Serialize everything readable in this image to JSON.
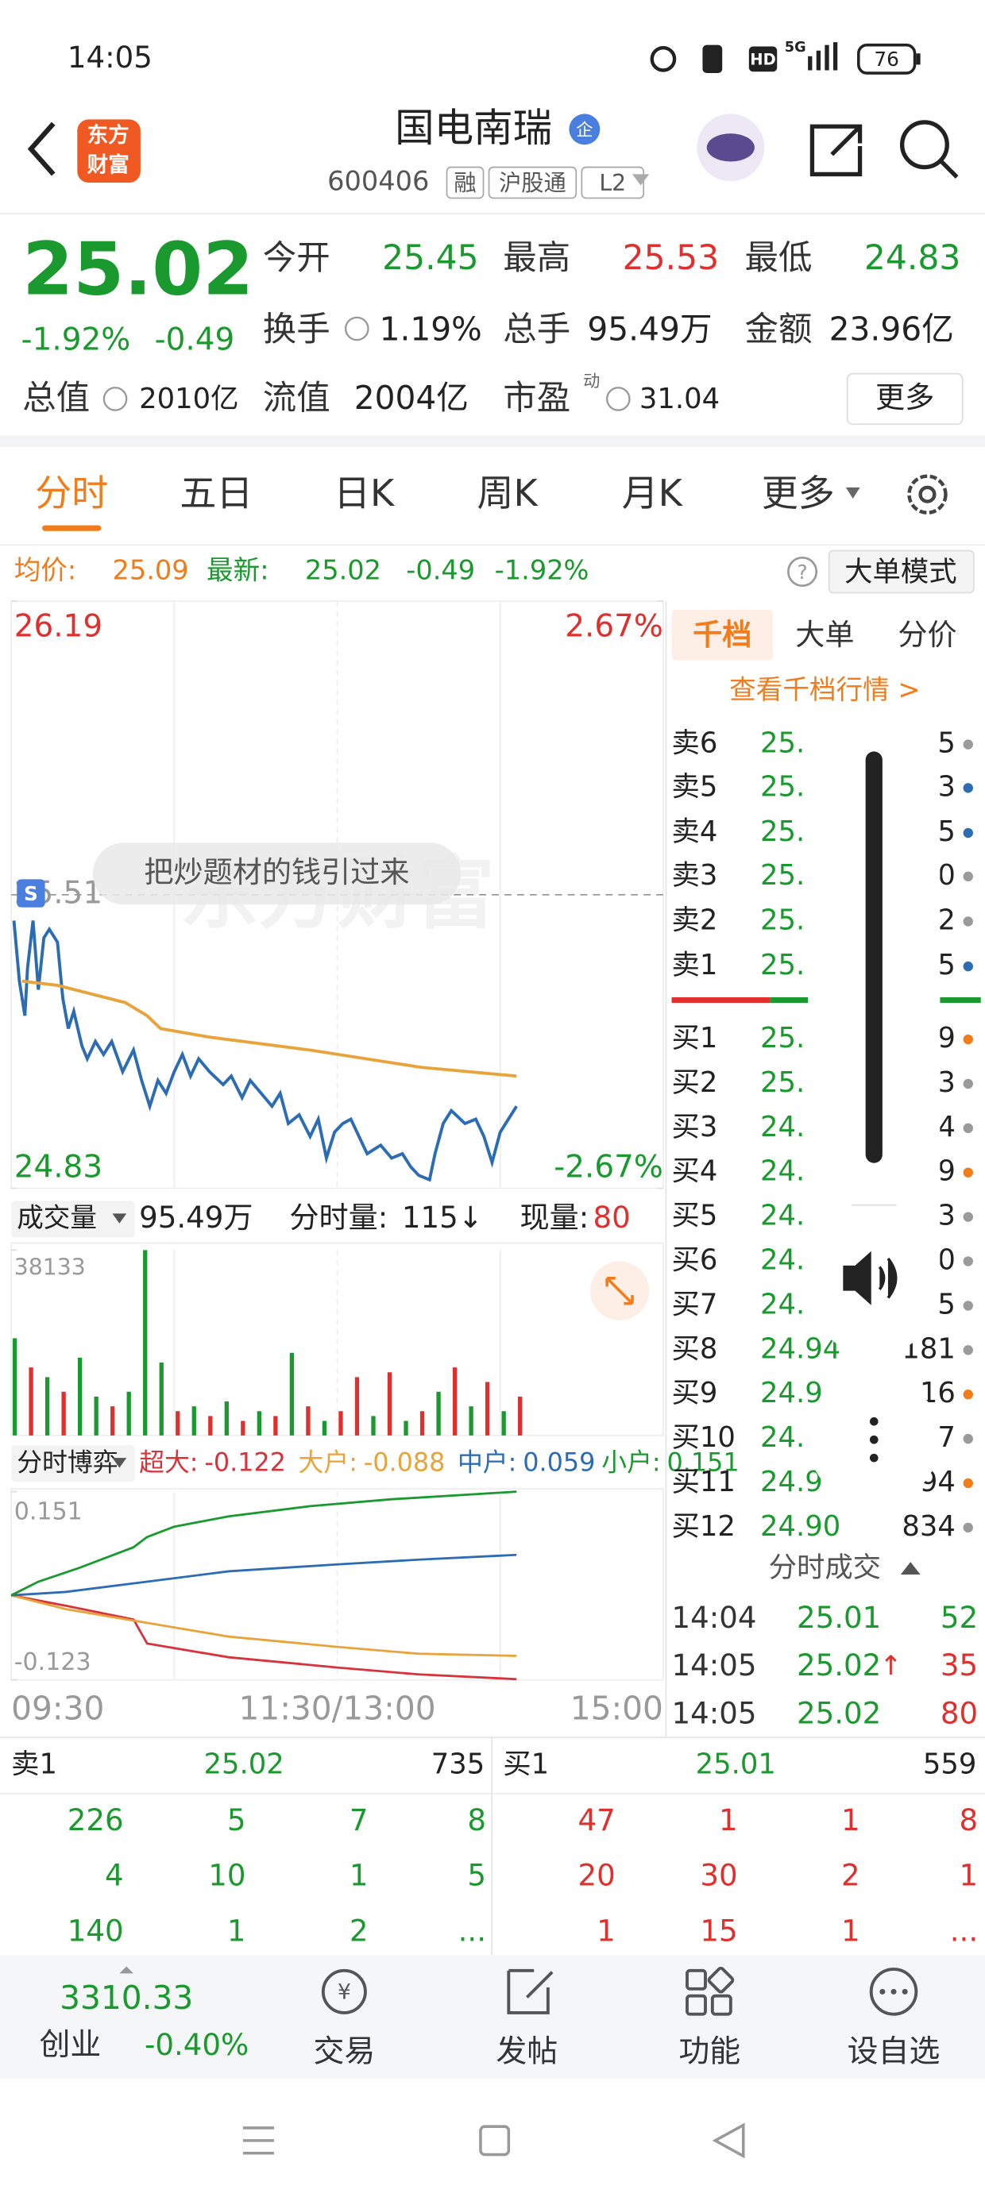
{
  "status_bar": {
    "time": "14:05",
    "hd": "HD",
    "network": "5G",
    "battery": "76"
  },
  "header": {
    "logo": [
      "东方",
      "财富"
    ],
    "title": "国电南瑞",
    "badge": "企",
    "code": "600406",
    "tags": [
      "融",
      "沪股通",
      "L2"
    ]
  },
  "quote": {
    "price": "25.02",
    "change_pct": "-1.92%",
    "change": "-0.49",
    "fields": [
      {
        "label": "今开",
        "value": "25.45",
        "color": "#1a9a2e"
      },
      {
        "label": "最高",
        "value": "25.53",
        "color": "#e0302e"
      },
      {
        "label": "最低",
        "value": "24.83",
        "color": "#1a9a2e"
      },
      {
        "label": "换手",
        "value": "1.19%",
        "color": "#222222"
      },
      {
        "label": "总手",
        "value": "95.49万",
        "color": "#222222"
      },
      {
        "label": "金额",
        "value": "23.96亿",
        "color": "#222222"
      },
      {
        "label": "总值",
        "value": "2010亿",
        "color": "#222222"
      },
      {
        "label": "流值",
        "value": "2004亿",
        "color": "#222222"
      },
      {
        "label": "市盈",
        "value": "31.04",
        "color": "#222222"
      }
    ],
    "pe_note": "动",
    "more_button": "更多"
  },
  "tabs": [
    "分时",
    "五日",
    "日K",
    "周K",
    "月K",
    "更多"
  ],
  "info_bar": {
    "avg_label": "均价:",
    "avg": "25.09",
    "last_label": "最新:",
    "last": "25.02",
    "change": "-0.49",
    "change_pct": "-1.92%",
    "help": "?",
    "mode_button": "大单模式"
  },
  "overlay": {
    "tooltip": "把炒题材的钱引过来",
    "watermark": "东方财富",
    "marker": "S"
  },
  "chart_data": [
    {
      "type": "line",
      "ylim": [
        24.83,
        26.19
      ],
      "yticks": [
        24.83,
        25.51,
        26.19
      ],
      "y2lim": [
        -2.67,
        2.67
      ],
      "y2ticks": [
        {
          "value": -2.67,
          "label": "-2.67%"
        },
        {
          "value": 2.67,
          "label": "2.67%"
        }
      ],
      "xlim": [
        0,
        240
      ],
      "xticks": [
        {
          "value": 60,
          "label": null
        },
        {
          "value": 120,
          "label": null
        },
        {
          "value": 180,
          "label": null
        }
      ],
      "series": [
        {
          "color": "#2b6cb4",
          "x": [
            1,
            3,
            5,
            6,
            8,
            10,
            12,
            14,
            17,
            19,
            21,
            23,
            26,
            28,
            31,
            34,
            37,
            41,
            45,
            48,
            51,
            54,
            57,
            60,
            63,
            66,
            69,
            73,
            78,
            81,
            85,
            88,
            92,
            96,
            99,
            102,
            106,
            110,
            113,
            116,
            119,
            122,
            125,
            128,
            131,
            136,
            140,
            144,
            147,
            150,
            154,
            156,
            159,
            162,
            167,
            171,
            174,
            177,
            180,
            183,
            186
          ],
          "values": [
            25.45,
            25.31,
            25.23,
            25.34,
            25.45,
            25.29,
            25.41,
            25.43,
            25.4,
            25.27,
            25.2,
            25.24,
            25.16,
            25.13,
            25.17,
            25.14,
            25.17,
            25.1,
            25.15,
            25.08,
            25.02,
            25.08,
            25.05,
            25.1,
            25.14,
            25.09,
            25.13,
            25.1,
            25.07,
            25.09,
            25.04,
            25.08,
            25.05,
            25.02,
            25.05,
            24.98,
            25.0,
            24.95,
            24.99,
            24.9,
            24.96,
            24.98,
            24.99,
            24.95,
            24.91,
            24.93,
            24.9,
            24.91,
            24.88,
            24.86,
            24.85,
            24.91,
            24.98,
            25.01,
            24.98,
            24.99,
            24.95,
            24.89,
            24.96,
            24.99,
            25.02
          ]
        },
        {
          "color": "#e8a33a",
          "x": [
            4,
            17,
            42,
            50,
            55,
            73,
            110,
            151,
            186
          ],
          "values": [
            25.31,
            25.3,
            25.26,
            25.23,
            25.2,
            25.18,
            25.15,
            25.11,
            25.09
          ]
        }
      ]
    },
    {
      "type": "bar",
      "title": "成交量",
      "total": "95.49万",
      "interval_label": "分时量:",
      "interval_value": "115↓",
      "current_label": "现量:",
      "current_value": "80",
      "ylim": [
        0,
        38133
      ],
      "yticks": [
        38133
      ],
      "xlim": [
        0,
        240
      ],
      "xticks": [
        {
          "value": 60,
          "label": null
        },
        {
          "value": 120,
          "label": null
        },
        {
          "value": 180,
          "label": null
        }
      ],
      "x": [
        0,
        6,
        12,
        18,
        24,
        30,
        36,
        42,
        48,
        54,
        60,
        66,
        72,
        78,
        84,
        90,
        96,
        102,
        108,
        114,
        120,
        126,
        132,
        138,
        144,
        150,
        156,
        162,
        168,
        174,
        180,
        186
      ],
      "values": [
        20000,
        14000,
        12000,
        9000,
        16000,
        8000,
        6000,
        9000,
        38133,
        15000,
        5000,
        6000,
        4000,
        7000,
        3000,
        5000,
        4000,
        17000,
        6000,
        3000,
        5000,
        12000,
        4000,
        13000,
        3000,
        5000,
        9000,
        14000,
        6000,
        11000,
        5000,
        8000
      ],
      "colors": [
        "#1a9a2e",
        "#e0302e",
        "#1a9a2e",
        "#e0302e",
        "#1a9a2e",
        "#1a9a2e",
        "#e0302e",
        "#1a9a2e",
        "#1a9a2e",
        "#1a9a2e",
        "#e0302e",
        "#1a9a2e",
        "#e0302e",
        "#1a9a2e",
        "#e0302e",
        "#1a9a2e",
        "#e0302e",
        "#1a9a2e",
        "#e0302e",
        "#1a9a2e",
        "#e0302e",
        "#e0302e",
        "#1a9a2e",
        "#e0302e",
        "#1a9a2e",
        "#e0302e",
        "#1a9a2e",
        "#e0302e",
        "#1a9a2e",
        "#e0302e",
        "#1a9a2e",
        "#e0302e"
      ]
    },
    {
      "type": "line",
      "title": "分时博弈",
      "ylim": [
        -0.123,
        0.151
      ],
      "yticks": [
        -0.123,
        0.151
      ],
      "xlim": [
        0,
        240
      ],
      "xticks": [
        {
          "value": 0,
          "label": "09:30"
        },
        {
          "value": 60,
          "label": null
        },
        {
          "value": 120,
          "label": "11:30/13:00"
        },
        {
          "value": 180,
          "label": null
        },
        {
          "value": 240,
          "label": "15:00"
        }
      ],
      "series": [
        {
          "name": "超大:",
          "latest": -0.122,
          "color": "#d8323a",
          "x": [
            0,
            20,
            45,
            50,
            80,
            120,
            150,
            186
          ],
          "values": [
            0,
            -0.015,
            -0.035,
            -0.07,
            -0.09,
            -0.105,
            -0.115,
            -0.122
          ]
        },
        {
          "name": "大户:",
          "latest": -0.088,
          "color": "#e8a33a",
          "x": [
            0,
            20,
            50,
            80,
            120,
            150,
            186
          ],
          "values": [
            0,
            -0.02,
            -0.04,
            -0.06,
            -0.075,
            -0.085,
            -0.088
          ]
        },
        {
          "name": "中户:",
          "latest": 0.059,
          "color": "#2b6cb4",
          "x": [
            0,
            20,
            50,
            80,
            120,
            150,
            186
          ],
          "values": [
            0,
            0.005,
            0.02,
            0.035,
            0.045,
            0.052,
            0.059
          ]
        },
        {
          "name": "小户:",
          "latest": 0.151,
          "color": "#1a9a2e",
          "x": [
            0,
            10,
            25,
            45,
            50,
            60,
            80,
            110,
            140,
            186
          ],
          "values": [
            0,
            0.02,
            0.04,
            0.07,
            0.085,
            0.1,
            0.115,
            0.13,
            0.14,
            0.151
          ]
        }
      ]
    }
  ],
  "depth": {
    "tabs": [
      "千档",
      "大单",
      "分价"
    ],
    "link": "查看千档行情 >",
    "sell": [
      {
        "label": "卖6",
        "price": "25.",
        "volume": "5",
        "dot": "#9a9a9a"
      },
      {
        "label": "卖5",
        "price": "25.",
        "volume": "3",
        "dot": "#2b6cb4"
      },
      {
        "label": "卖4",
        "price": "25.",
        "volume": "5",
        "dot": "#2b6cb4"
      },
      {
        "label": "卖3",
        "price": "25.",
        "volume": "0",
        "dot": "#9a9a9a"
      },
      {
        "label": "卖2",
        "price": "25.",
        "volume": "2",
        "dot": "#9a9a9a"
      },
      {
        "label": "卖1",
        "price": "25.",
        "volume": "5",
        "dot": "#2b6cb4"
      }
    ],
    "buy": [
      {
        "label": "买1",
        "price": "25.",
        "volume": "9",
        "dot": "#f07c1c"
      },
      {
        "label": "买2",
        "price": "25.",
        "volume": "3",
        "dot": "#9a9a9a"
      },
      {
        "label": "买3",
        "price": "24.",
        "volume": "4",
        "dot": "#9a9a9a"
      },
      {
        "label": "买4",
        "price": "24.",
        "volume": "9",
        "dot": "#f07c1c"
      },
      {
        "label": "买5",
        "price": "24.",
        "volume": "3",
        "dot": "#9a9a9a"
      },
      {
        "label": "买6",
        "price": "24.",
        "volume": "0",
        "dot": "#9a9a9a"
      },
      {
        "label": "买7",
        "price": "24.",
        "volume": "5",
        "dot": "#9a9a9a"
      },
      {
        "label": "买8",
        "price": "24.94",
        "volume": "181",
        "dot": "#9a9a9a"
      },
      {
        "label": "买9",
        "price": "24.9",
        "volume": "16",
        "dot": "#f07c1c"
      },
      {
        "label": "买10",
        "price": "24.",
        "volume": "7",
        "dot": "#9a9a9a"
      },
      {
        "label": "买11",
        "price": "24.9",
        "volume": "94",
        "dot": "#f07c1c"
      },
      {
        "label": "买12",
        "price": "24.90",
        "volume": "834",
        "dot": "#9a9a9a"
      }
    ]
  },
  "trades": {
    "title": "分时成交",
    "rows": [
      {
        "time": "14:04",
        "price": "25.01",
        "volume": "52",
        "color": "#1a9a2e"
      },
      {
        "time": "14:05",
        "price": "25.02",
        "arrow": "↑",
        "volume": "35",
        "color": "#e0302e"
      },
      {
        "time": "14:05",
        "price": "25.02",
        "volume": "80",
        "color": "#e0302e"
      }
    ]
  },
  "level2": {
    "sell": {
      "label": "卖1",
      "price": "25.02",
      "volume": "735",
      "queue": [
        [
          "226",
          "5",
          "7",
          "8"
        ],
        [
          "4",
          "10",
          "1",
          "5"
        ],
        [
          "140",
          "1",
          "2",
          "..."
        ]
      ]
    },
    "buy": {
      "label": "买1",
      "price": "25.01",
      "volume": "559",
      "queue": [
        [
          "47",
          "1",
          "1",
          "8"
        ],
        [
          "20",
          "30",
          "2",
          "1"
        ],
        [
          "1",
          "15",
          "1",
          "..."
        ]
      ]
    }
  },
  "market": {
    "value": "3310.33",
    "name": "创业",
    "change": "-0.40%"
  },
  "nav": [
    "交易",
    "发帖",
    "功能",
    "设自选"
  ]
}
